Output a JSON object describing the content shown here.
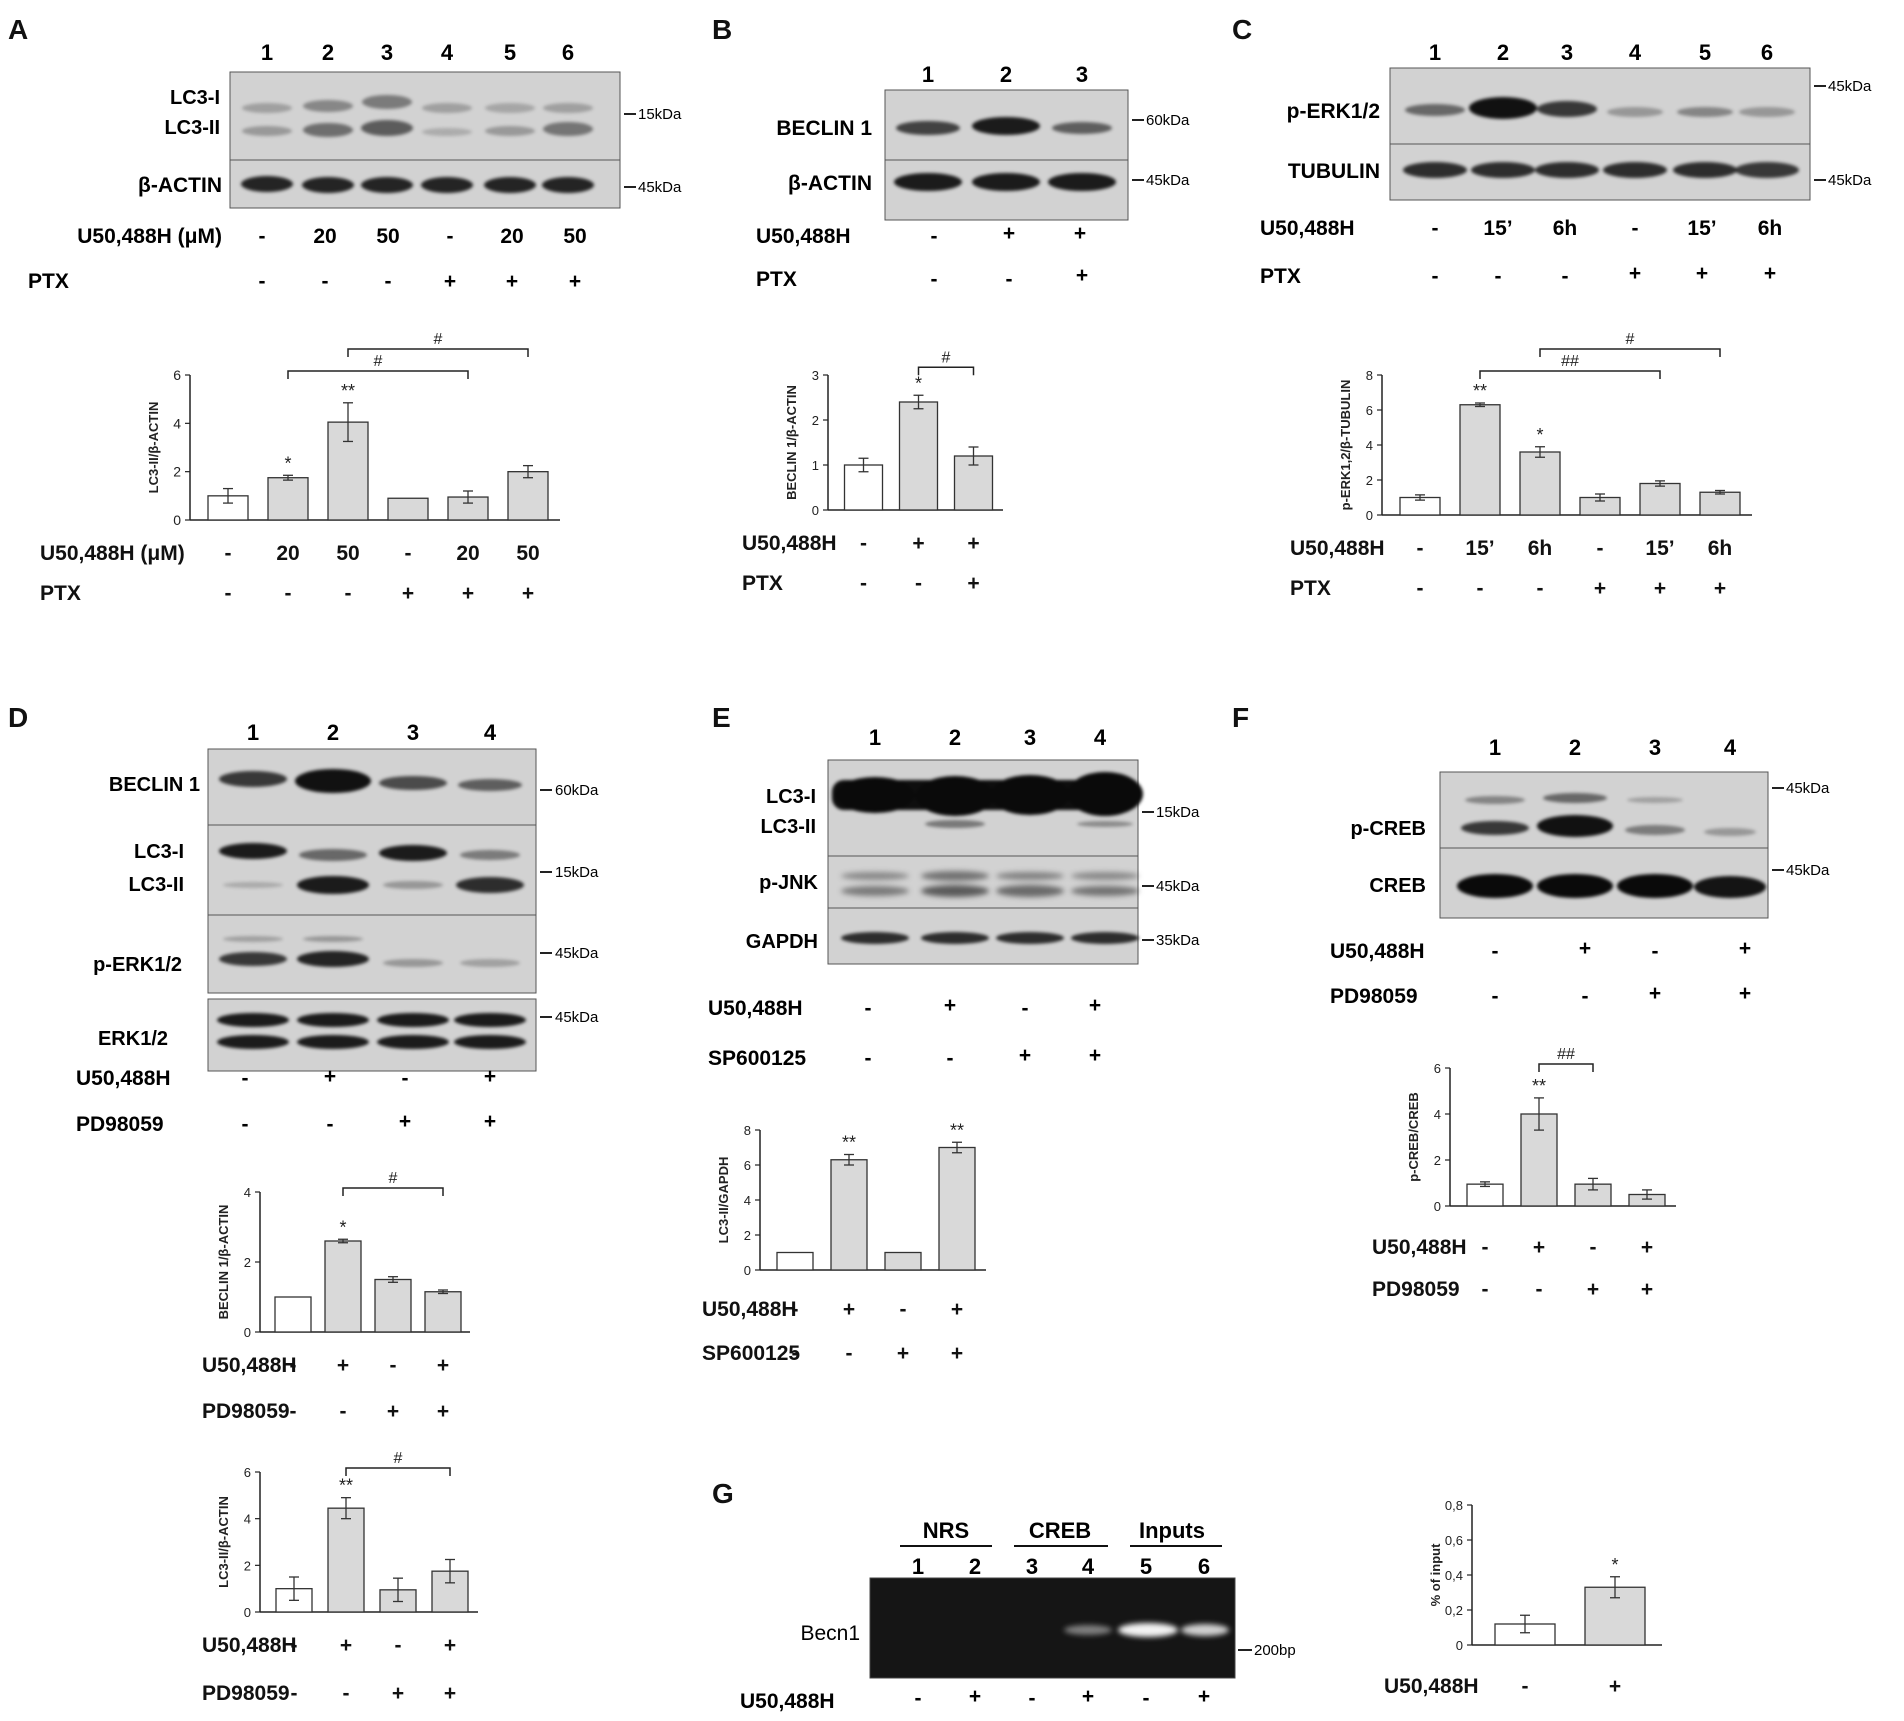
{
  "panel_labels": [
    "A",
    "B",
    "C",
    "D",
    "E",
    "F",
    "G"
  ],
  "blots": {
    "A": {
      "lanes": [
        "1",
        "2",
        "3",
        "4",
        "5",
        "6"
      ],
      "rows": [
        {
          "label": "LC3-I",
          "label2": "LC3-II",
          "marker": "15kDa"
        },
        {
          "label": "β-ACTIN",
          "marker": "45kDa"
        }
      ],
      "conditions": [
        {
          "name": "U50,488H (μM)",
          "values": [
            "-",
            "20",
            "50",
            "-",
            "20",
            "50"
          ]
        },
        {
          "name": "PTX",
          "values": [
            "-",
            "-",
            "-",
            "+",
            "+",
            "+"
          ]
        }
      ]
    },
    "B": {
      "lanes": [
        "1",
        "2",
        "3"
      ],
      "rows": [
        {
          "label": "BECLIN 1",
          "marker": "60kDa"
        },
        {
          "label": "β-ACTIN",
          "marker": "45kDa"
        }
      ],
      "conditions": [
        {
          "name": "U50,488H",
          "values": [
            "-",
            "+",
            "+"
          ]
        },
        {
          "name": "PTX",
          "values": [
            "-",
            "-",
            "+"
          ]
        }
      ]
    },
    "C": {
      "lanes": [
        "1",
        "2",
        "3",
        "4",
        "5",
        "6"
      ],
      "rows": [
        {
          "label": "p-ERK1/2",
          "marker": "45kDa"
        },
        {
          "label": "TUBULIN",
          "marker": "45kDa"
        }
      ],
      "conditions": [
        {
          "name": "U50,488H",
          "values": [
            "-",
            "15’",
            "6h",
            "-",
            "15’",
            "6h"
          ]
        },
        {
          "name": "PTX",
          "values": [
            "-",
            "-",
            "-",
            "+",
            "+",
            "+"
          ]
        }
      ]
    },
    "D": {
      "lanes": [
        "1",
        "2",
        "3",
        "4"
      ],
      "rows": [
        {
          "label": "BECLIN 1",
          "marker": "60kDa"
        },
        {
          "label": "LC3-I",
          "label2": "LC3-II",
          "marker": "15kDa"
        },
        {
          "label": "p-ERK1/2",
          "marker": "45kDa"
        },
        {
          "label": "ERK1/2",
          "marker": "45kDa"
        }
      ],
      "conditions": [
        {
          "name": "U50,488H",
          "values": [
            "-",
            "+",
            "-",
            "+"
          ]
        },
        {
          "name": "PD98059",
          "values": [
            "-",
            "-",
            "+",
            "+"
          ]
        }
      ]
    },
    "E": {
      "lanes": [
        "1",
        "2",
        "3",
        "4"
      ],
      "rows": [
        {
          "label": "LC3-I",
          "label2": "LC3-II",
          "marker": "15kDa"
        },
        {
          "label": "p-JNK",
          "marker": "45kDa"
        },
        {
          "label": "GAPDH",
          "marker": "35kDa"
        }
      ],
      "conditions": [
        {
          "name": "U50,488H",
          "values": [
            "-",
            "+",
            "-",
            "+"
          ]
        },
        {
          "name": "SP600125",
          "values": [
            "-",
            "-",
            "+",
            "+"
          ]
        }
      ]
    },
    "F": {
      "lanes": [
        "1",
        "2",
        "3",
        "4"
      ],
      "rows": [
        {
          "label": "p-CREB",
          "marker": "45kDa"
        },
        {
          "label": "CREB",
          "marker": "45kDa"
        }
      ],
      "conditions": [
        {
          "name": "U50,488H",
          "values": [
            "-",
            "+",
            "-",
            "+"
          ]
        },
        {
          "name": "PD98059",
          "values": [
            "-",
            "-",
            "+",
            "+"
          ]
        }
      ]
    },
    "G": {
      "groups": [
        "NRS",
        "CREB",
        "Inputs"
      ],
      "lanes": [
        "1",
        "2",
        "3",
        "4",
        "5",
        "6"
      ],
      "row_label": "Becn1",
      "marker": "200bp",
      "conditions": [
        {
          "name": "U50,488H",
          "values": [
            "-",
            "+",
            "-",
            "+",
            "-",
            "+"
          ]
        }
      ]
    }
  },
  "colors": {
    "bar_fill": "#d9d9d9",
    "bar_control": "#ffffff",
    "axis": "#222222",
    "blot_bg": "#dcdcdc",
    "gel_bg": "#151515"
  },
  "chart_data": [
    {
      "id": "A",
      "type": "bar",
      "ylabel": "LC3-II/β-ACTIN",
      "ylim": [
        0,
        6
      ],
      "yticks": [
        0,
        2,
        4,
        6
      ],
      "values": [
        1.0,
        1.75,
        4.05,
        0.9,
        0.95,
        2.0
      ],
      "errors": [
        0.3,
        0.1,
        0.8,
        0,
        0.25,
        0.25
      ],
      "control": [
        true,
        false,
        false,
        false,
        false,
        false
      ],
      "sig": [
        "",
        "*",
        "**",
        "",
        "",
        ""
      ],
      "brackets": [
        {
          "from": 1,
          "to": 4,
          "label": "#"
        },
        {
          "from": 2,
          "to": 5,
          "label": "#"
        }
      ],
      "conditions": [
        {
          "name": "U50,488H (μM)",
          "values": [
            "-",
            "20",
            "50",
            "-",
            "20",
            "50"
          ]
        },
        {
          "name": "PTX",
          "values": [
            "-",
            "-",
            "-",
            "+",
            "+",
            "+"
          ]
        }
      ]
    },
    {
      "id": "B",
      "type": "bar",
      "ylabel": "BECLIN 1/β-ACTIN",
      "ylim": [
        0,
        3
      ],
      "yticks": [
        0,
        1,
        2,
        3
      ],
      "values": [
        1.0,
        2.4,
        1.2
      ],
      "errors": [
        0.15,
        0.15,
        0.2
      ],
      "control": [
        true,
        false,
        false
      ],
      "sig": [
        "",
        "*",
        ""
      ],
      "brackets": [
        {
          "from": 1,
          "to": 2,
          "label": "#"
        }
      ],
      "conditions": [
        {
          "name": "U50,488H",
          "values": [
            "-",
            "+",
            "+"
          ]
        },
        {
          "name": "PTX",
          "values": [
            "-",
            "-",
            "+"
          ]
        }
      ]
    },
    {
      "id": "C",
      "type": "bar",
      "ylabel": "p-ERK1,2/β-TUBULIN",
      "ylim": [
        0,
        8
      ],
      "yticks": [
        0,
        2,
        4,
        6,
        8
      ],
      "values": [
        1.0,
        6.3,
        3.6,
        1.0,
        1.8,
        1.3
      ],
      "errors": [
        0.15,
        0.1,
        0.3,
        0.2,
        0.15,
        0.1
      ],
      "control": [
        true,
        false,
        false,
        false,
        false,
        false
      ],
      "sig": [
        "",
        "**",
        "*",
        "",
        "",
        ""
      ],
      "brackets": [
        {
          "from": 1,
          "to": 4,
          "label": "##"
        },
        {
          "from": 2,
          "to": 5,
          "label": "#"
        }
      ],
      "conditions": [
        {
          "name": "U50,488H",
          "values": [
            "-",
            "15’",
            "6h",
            "-",
            "15’",
            "6h"
          ]
        },
        {
          "name": "PTX",
          "values": [
            "-",
            "-",
            "-",
            "+",
            "+",
            "+"
          ]
        }
      ]
    },
    {
      "id": "D1",
      "type": "bar",
      "ylabel": "BECLIN 1/β-ACTIN",
      "ylim": [
        0,
        4
      ],
      "yticks": [
        0,
        2,
        4
      ],
      "values": [
        1.0,
        2.6,
        1.5,
        1.15
      ],
      "errors": [
        0,
        0.05,
        0.08,
        0.05
      ],
      "control": [
        true,
        false,
        false,
        false
      ],
      "sig": [
        "",
        "*",
        "",
        ""
      ],
      "brackets": [
        {
          "from": 1,
          "to": 3,
          "label": "#"
        }
      ],
      "conditions": [
        {
          "name": "U50,488H",
          "values": [
            "-",
            "+",
            "-",
            "+"
          ]
        },
        {
          "name": "PD98059",
          "values": [
            "-",
            "-",
            "+",
            "+"
          ]
        }
      ]
    },
    {
      "id": "D2",
      "type": "bar",
      "ylabel": "LC3-II/β-ACTIN",
      "ylim": [
        0,
        6
      ],
      "yticks": [
        0,
        2,
        4,
        6
      ],
      "values": [
        1.0,
        4.45,
        0.95,
        1.75
      ],
      "errors": [
        0.5,
        0.45,
        0.5,
        0.5
      ],
      "control": [
        true,
        false,
        false,
        false
      ],
      "sig": [
        "",
        "**",
        "",
        ""
      ],
      "brackets": [
        {
          "from": 1,
          "to": 3,
          "label": "#"
        }
      ],
      "conditions": [
        {
          "name": "U50,488H",
          "values": [
            "-",
            "+",
            "-",
            "+"
          ]
        },
        {
          "name": "PD98059",
          "values": [
            "-",
            "-",
            "+",
            "+"
          ]
        }
      ]
    },
    {
      "id": "E",
      "type": "bar",
      "ylabel": "LC3-II/GAPDH",
      "ylim": [
        0,
        8
      ],
      "yticks": [
        0,
        2,
        4,
        6,
        8
      ],
      "values": [
        1.0,
        6.3,
        1.0,
        7.0
      ],
      "errors": [
        0,
        0.3,
        0,
        0.3
      ],
      "control": [
        true,
        false,
        false,
        false
      ],
      "sig": [
        "",
        "**",
        "",
        "**"
      ],
      "brackets": [],
      "conditions": [
        {
          "name": "U50,488H",
          "values": [
            "-",
            "+",
            "-",
            "+"
          ]
        },
        {
          "name": "SP600125",
          "values": [
            "-",
            "-",
            "+",
            "+"
          ]
        }
      ]
    },
    {
      "id": "F",
      "type": "bar",
      "ylabel": "p-CREB/CREB",
      "ylim": [
        0,
        6
      ],
      "yticks": [
        0,
        2,
        4,
        6
      ],
      "values": [
        0.95,
        4.0,
        0.95,
        0.5
      ],
      "errors": [
        0.1,
        0.7,
        0.25,
        0.2
      ],
      "control": [
        true,
        false,
        false,
        false
      ],
      "sig": [
        "",
        "**",
        "",
        ""
      ],
      "brackets": [
        {
          "from": 1,
          "to": 2,
          "label": "##"
        }
      ],
      "conditions": [
        {
          "name": "U50,488H",
          "values": [
            "-",
            "+",
            "-",
            "+"
          ]
        },
        {
          "name": "PD98059",
          "values": [
            "-",
            "-",
            "+",
            "+"
          ]
        }
      ]
    },
    {
      "id": "G",
      "type": "bar",
      "ylabel": "% of input",
      "ylim": [
        0,
        0.8
      ],
      "yticks": [
        "0",
        "0,2",
        "0,4",
        "0,6",
        "0,8"
      ],
      "values": [
        0.12,
        0.33
      ],
      "errors": [
        0.05,
        0.06
      ],
      "control": [
        true,
        false
      ],
      "sig": [
        "",
        "*"
      ],
      "brackets": [],
      "conditions": [
        {
          "name": "U50,488H",
          "values": [
            "-",
            "+"
          ]
        }
      ]
    }
  ]
}
